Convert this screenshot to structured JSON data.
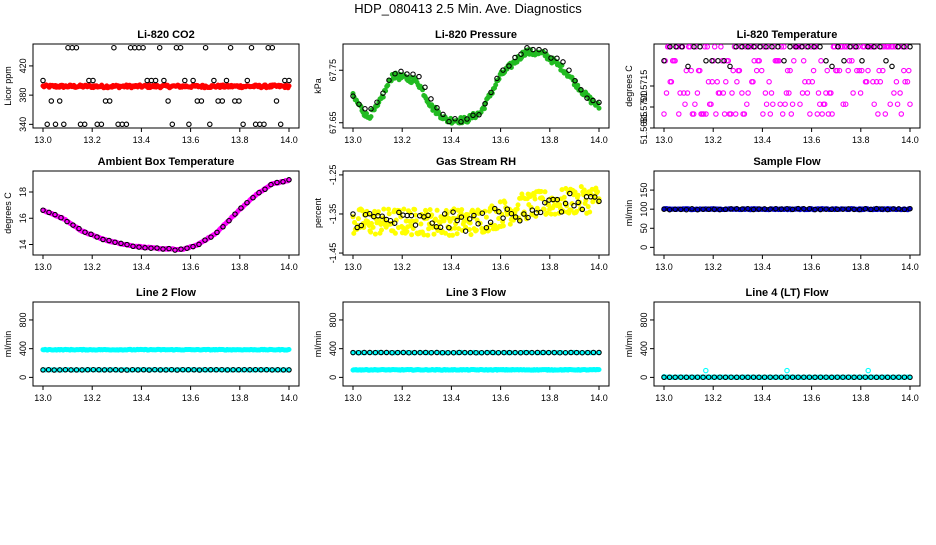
{
  "page_title": "HDP_080413  2.5 Min. Ave. Diagnostics",
  "colors": {
    "black": "#000000",
    "red": "#ff0000",
    "green": "#22bb22",
    "magenta": "#ff00ff",
    "yellow": "#ffff00",
    "blue": "#0000cc",
    "cyan": "#00ffff"
  },
  "chart_data": [
    {
      "id": "co2",
      "type": "scatter",
      "title": "Li-820 CO2",
      "ylabel": "Licor ppm",
      "xlim": [
        13.0,
        14.0
      ],
      "ylim": [
        335,
        450
      ],
      "xticks": [
        13.0,
        13.2,
        13.4,
        13.6,
        13.8,
        14.0
      ],
      "xtick_labels": [
        "13.0",
        "13.2",
        "13.4",
        "13.6",
        "13.8",
        "14.0"
      ],
      "yticks": [
        340,
        380,
        420
      ],
      "ytick_labels": [
        "340",
        "380",
        "420"
      ],
      "series": [
        {
          "name": "main",
          "color": "red",
          "marker": "filled",
          "gen": {
            "kind": "const",
            "base": 392,
            "noise": 2,
            "n": 240
          }
        },
        {
          "name": "raw",
          "color": "black",
          "marker": "open",
          "gen": {
            "kind": "levels",
            "levels": [
              445,
              400,
              372,
              340
            ],
            "n": 60
          }
        }
      ]
    },
    {
      "id": "pressure",
      "type": "scatter",
      "title": "Li-820 Pressure",
      "ylabel": "kPa",
      "xlim": [
        13.0,
        14.0
      ],
      "ylim": [
        67.64,
        67.8
      ],
      "xticks": [
        13.0,
        13.2,
        13.4,
        13.6,
        13.8,
        14.0
      ],
      "xtick_labels": [
        "13.0",
        "13.2",
        "13.4",
        "13.6",
        "13.8",
        "14.0"
      ],
      "yticks": [
        67.65,
        67.75
      ],
      "ytick_labels": [
        "67.65",
        "67.75"
      ],
      "series": [
        {
          "name": "main",
          "color": "green",
          "marker": "filled",
          "gen": {
            "kind": "curve",
            "pts": [
              [
                13.0,
                67.7
              ],
              [
                13.06,
                67.66
              ],
              [
                13.1,
                67.68
              ],
              [
                13.16,
                67.74
              ],
              [
                13.26,
                67.73
              ],
              [
                13.32,
                67.68
              ],
              [
                13.38,
                67.655
              ],
              [
                13.46,
                67.655
              ],
              [
                13.52,
                67.67
              ],
              [
                13.6,
                67.74
              ],
              [
                13.7,
                67.785
              ],
              [
                13.78,
                67.78
              ],
              [
                13.86,
                67.75
              ],
              [
                13.95,
                67.7
              ],
              [
                14.0,
                67.68
              ]
            ],
            "noise": 0.006,
            "n": 220
          }
        },
        {
          "name": "raw",
          "color": "black",
          "marker": "open",
          "gen": {
            "kind": "curve",
            "pts": [
              [
                13.0,
                67.7
              ],
              [
                13.06,
                67.67
              ],
              [
                13.1,
                67.69
              ],
              [
                13.16,
                67.745
              ],
              [
                13.26,
                67.745
              ],
              [
                13.32,
                67.69
              ],
              [
                13.38,
                67.655
              ],
              [
                13.46,
                67.655
              ],
              [
                13.52,
                67.67
              ],
              [
                13.6,
                67.745
              ],
              [
                13.7,
                67.79
              ],
              [
                13.78,
                67.785
              ],
              [
                13.86,
                67.76
              ],
              [
                13.95,
                67.7
              ],
              [
                14.0,
                67.69
              ]
            ],
            "noise": 0.004,
            "n": 42
          }
        }
      ]
    },
    {
      "id": "licor_temp",
      "type": "scatter",
      "title": "Li-820 Temperature",
      "ylabel": "degrees C",
      "xlim": [
        13.0,
        14.0
      ],
      "ylim": [
        51.5685,
        51.5745
      ],
      "xticks": [
        13.0,
        13.2,
        13.4,
        13.6,
        13.8,
        14.0
      ],
      "xtick_labels": [
        "13.0",
        "13.2",
        "13.4",
        "13.6",
        "13.8",
        "14.0"
      ],
      "yticks": [
        51.5685,
        51.57,
        51.5715
      ],
      "ytick_labels": [
        "51.5685",
        "51.5700",
        "51.5715"
      ],
      "series": [
        {
          "name": "main",
          "color": "magenta",
          "marker": "open",
          "gen": {
            "kind": "levels",
            "levels": [
              51.5743,
              51.5743,
              51.5743,
              51.5733,
              51.5726,
              51.5718,
              51.571,
              51.5702,
              51.5695
            ],
            "n": 200
          }
        },
        {
          "name": "raw",
          "color": "black",
          "marker": "open",
          "gen": {
            "kind": "levels",
            "levels": [
              51.5743,
              51.5743,
              51.5743,
              51.5733,
              51.5729
            ],
            "n": 42
          }
        }
      ]
    },
    {
      "id": "box_temp",
      "type": "scatter",
      "title": "Ambient Box Temperature",
      "ylabel": "degrees C",
      "xlim": [
        13.0,
        14.0
      ],
      "ylim": [
        13.2,
        19.6
      ],
      "xticks": [
        13.0,
        13.2,
        13.4,
        13.6,
        13.8,
        14.0
      ],
      "xtick_labels": [
        "13.0",
        "13.2",
        "13.4",
        "13.6",
        "13.8",
        "14.0"
      ],
      "yticks": [
        14,
        16,
        18
      ],
      "ytick_labels": [
        "14",
        "16",
        "18"
      ],
      "series": [
        {
          "name": "main",
          "color": "magenta",
          "marker": "filled",
          "gen": {
            "kind": "curve",
            "pts": [
              [
                13.0,
                16.6
              ],
              [
                13.08,
                16.0
              ],
              [
                13.16,
                15.0
              ],
              [
                13.26,
                14.3
              ],
              [
                13.36,
                13.9
              ],
              [
                13.46,
                13.7
              ],
              [
                13.56,
                13.6
              ],
              [
                13.62,
                13.9
              ],
              [
                13.7,
                14.8
              ],
              [
                13.78,
                16.3
              ],
              [
                13.86,
                17.7
              ],
              [
                13.93,
                18.6
              ],
              [
                14.0,
                18.9
              ]
            ],
            "noise": 0.04,
            "n": 220
          }
        },
        {
          "name": "raw",
          "color": "black",
          "marker": "open",
          "gen": {
            "kind": "curve",
            "pts": [
              [
                13.0,
                16.6
              ],
              [
                13.08,
                16.0
              ],
              [
                13.16,
                15.0
              ],
              [
                13.26,
                14.3
              ],
              [
                13.36,
                13.9
              ],
              [
                13.46,
                13.7
              ],
              [
                13.56,
                13.6
              ],
              [
                13.62,
                13.9
              ],
              [
                13.7,
                14.8
              ],
              [
                13.78,
                16.3
              ],
              [
                13.86,
                17.7
              ],
              [
                13.93,
                18.6
              ],
              [
                14.0,
                18.9
              ]
            ],
            "noise": 0.05,
            "n": 42
          }
        }
      ]
    },
    {
      "id": "rh",
      "type": "scatter",
      "title": "Gas Stream RH",
      "ylabel": "percent",
      "xlim": [
        13.0,
        14.0
      ],
      "ylim": [
        -1.455,
        -1.24
      ],
      "xticks": [
        13.0,
        13.2,
        13.4,
        13.6,
        13.8,
        14.0
      ],
      "xtick_labels": [
        "13.0",
        "13.2",
        "13.4",
        "13.6",
        "13.8",
        "14.0"
      ],
      "yticks": [
        -1.45,
        -1.35,
        -1.25
      ],
      "ytick_labels": [
        "-1.45",
        "-1.35",
        "-1.25"
      ],
      "series": [
        {
          "name": "main",
          "color": "yellow",
          "marker": "filled",
          "gen": {
            "kind": "curve",
            "pts": [
              [
                13.0,
                -1.37
              ],
              [
                13.3,
                -1.37
              ],
              [
                13.5,
                -1.37
              ],
              [
                13.7,
                -1.33
              ],
              [
                14.0,
                -1.31
              ]
            ],
            "noise": 0.035,
            "n": 320
          }
        },
        {
          "name": "raw",
          "color": "black",
          "marker": "open",
          "gen": {
            "kind": "curve",
            "pts": [
              [
                13.0,
                -1.36
              ],
              [
                13.3,
                -1.37
              ],
              [
                13.5,
                -1.37
              ],
              [
                13.7,
                -1.34
              ],
              [
                14.0,
                -1.31
              ]
            ],
            "noise": 0.025,
            "n": 60
          }
        }
      ]
    },
    {
      "id": "sample_flow",
      "type": "scatter",
      "title": "Sample Flow",
      "ylabel": "ml/min",
      "xlim": [
        13.0,
        14.0
      ],
      "ylim": [
        -20,
        200
      ],
      "xticks": [
        13.0,
        13.2,
        13.4,
        13.6,
        13.8,
        14.0
      ],
      "xtick_labels": [
        "13.0",
        "13.2",
        "13.4",
        "13.6",
        "13.8",
        "14.0"
      ],
      "yticks": [
        0,
        50,
        100,
        150
      ],
      "ytick_labels": [
        "0",
        "50",
        "100",
        "150"
      ],
      "series": [
        {
          "name": "main",
          "color": "blue",
          "marker": "filled",
          "gen": {
            "kind": "const",
            "base": 100,
            "noise": 1.5,
            "n": 220
          }
        },
        {
          "name": "raw",
          "color": "black",
          "marker": "open",
          "gen": {
            "kind": "const",
            "base": 100,
            "noise": 1.5,
            "n": 45
          }
        }
      ]
    },
    {
      "id": "line2_flow",
      "type": "scatter",
      "title": "Line 2 Flow",
      "ylabel": "ml/min",
      "xlim": [
        13.0,
        14.0
      ],
      "ylim": [
        -120,
        1050
      ],
      "xticks": [
        13.0,
        13.2,
        13.4,
        13.6,
        13.8,
        14.0
      ],
      "xtick_labels": [
        "13.0",
        "13.2",
        "13.4",
        "13.6",
        "13.8",
        "14.0"
      ],
      "yticks": [
        0,
        400,
        800
      ],
      "ytick_labels": [
        "0",
        "400",
        "800"
      ],
      "series": [
        {
          "name": "upper",
          "color": "cyan",
          "marker": "filled",
          "gen": {
            "kind": "const",
            "base": 385,
            "noise": 5,
            "n": 220
          }
        },
        {
          "name": "lower",
          "color": "cyan",
          "marker": "filled",
          "gen": {
            "kind": "const",
            "base": 105,
            "noise": 3,
            "n": 90
          }
        },
        {
          "name": "raw",
          "color": "black",
          "marker": "open",
          "gen": {
            "kind": "const",
            "base": 105,
            "noise": 2,
            "n": 45
          }
        }
      ]
    },
    {
      "id": "line3_flow",
      "type": "scatter",
      "title": "Line 3 Flow",
      "ylabel": "ml/min",
      "xlim": [
        13.0,
        14.0
      ],
      "ylim": [
        -120,
        1050
      ],
      "xticks": [
        13.0,
        13.2,
        13.4,
        13.6,
        13.8,
        14.0
      ],
      "xtick_labels": [
        "13.0",
        "13.2",
        "13.4",
        "13.6",
        "13.8",
        "14.0"
      ],
      "yticks": [
        0,
        400,
        800
      ],
      "ytick_labels": [
        "0",
        "400",
        "800"
      ],
      "series": [
        {
          "name": "lower",
          "color": "cyan",
          "marker": "filled",
          "gen": {
            "kind": "const",
            "base": 105,
            "noise": 5,
            "n": 240
          }
        },
        {
          "name": "upper",
          "color": "cyan",
          "marker": "filled",
          "gen": {
            "kind": "const",
            "base": 345,
            "noise": 3,
            "n": 60
          }
        },
        {
          "name": "raw",
          "color": "black",
          "marker": "open",
          "gen": {
            "kind": "const",
            "base": 345,
            "noise": 2,
            "n": 45
          }
        }
      ]
    },
    {
      "id": "line4_flow",
      "type": "scatter",
      "title": "Line 4 (LT) Flow",
      "ylabel": "ml/min",
      "xlim": [
        13.0,
        14.0
      ],
      "ylim": [
        -120,
        1050
      ],
      "xticks": [
        13.0,
        13.2,
        13.4,
        13.6,
        13.8,
        14.0
      ],
      "xtick_labels": [
        "13.0",
        "13.2",
        "13.4",
        "13.6",
        "13.8",
        "14.0"
      ],
      "yticks": [
        0,
        400,
        800
      ],
      "ytick_labels": [
        "0",
        "400",
        "800"
      ],
      "series": [
        {
          "name": "main",
          "color": "cyan",
          "marker": "filled",
          "gen": {
            "kind": "const",
            "base": 2,
            "noise": 2,
            "n": 200
          }
        },
        {
          "name": "spikes",
          "color": "cyan",
          "marker": "open",
          "gen": {
            "kind": "points",
            "pts": [
              [
                13.17,
                95
              ],
              [
                13.5,
                95
              ],
              [
                13.83,
                95
              ],
              [
                13.0,
                8
              ]
            ]
          }
        },
        {
          "name": "raw",
          "color": "black",
          "marker": "open",
          "gen": {
            "kind": "const",
            "base": 2,
            "noise": 1,
            "n": 45
          }
        }
      ]
    }
  ]
}
